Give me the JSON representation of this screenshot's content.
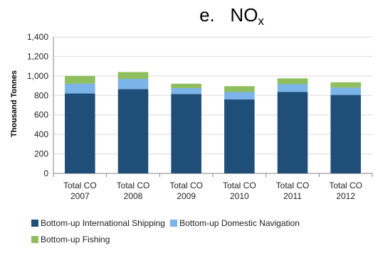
{
  "chart_data": {
    "type": "bar",
    "stacked": true,
    "title_prefix": "e.",
    "title_main": "NO",
    "title_sub": "x",
    "ylabel": "Thousand Tonnes",
    "ylim": [
      0,
      1400
    ],
    "yticks": [
      "0",
      "200",
      "400",
      "600",
      "800",
      "1,000",
      "1,200",
      "1,400"
    ],
    "categories": [
      {
        "line1": "Total CO",
        "line2": "2007"
      },
      {
        "line1": "Total CO",
        "line2": "2008"
      },
      {
        "line1": "Total CO",
        "line2": "2009"
      },
      {
        "line1": "Total CO",
        "line2": "2010"
      },
      {
        "line1": "Total CO",
        "line2": "2011"
      },
      {
        "line1": "Total CO",
        "line2": "2012"
      }
    ],
    "series": [
      {
        "name": "Bottom-up International Shipping",
        "color": "#1f4e79",
        "values": [
          820,
          865,
          815,
          760,
          835,
          805
        ]
      },
      {
        "name": "Bottom-up Domestic Navigation",
        "color": "#7ab4e8",
        "values": [
          100,
          105,
          60,
          75,
          80,
          75
        ]
      },
      {
        "name": "Bottom-up Fishing",
        "color": "#8fbe5e",
        "values": [
          80,
          70,
          45,
          60,
          60,
          55
        ]
      }
    ],
    "grid": true,
    "legend_position": "bottom"
  }
}
